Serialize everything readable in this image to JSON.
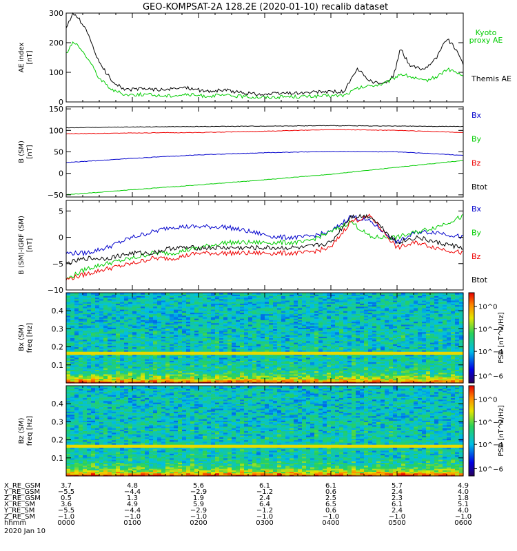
{
  "chart_data": {
    "type": "line",
    "title": "GEO-KOMPSAT-2A 128.2E (2020-01-10) recalib dataset",
    "x_range_hours": [
      0,
      6
    ],
    "panels": [
      {
        "id": "ae",
        "ylabel": [
          "AE index",
          "[nT]"
        ],
        "ylim": [
          0,
          300
        ],
        "yticks": [
          0,
          100,
          200,
          300
        ],
        "legend": [
          {
            "label": "Kyoto proxy AE",
            "color": "#00cc00"
          },
          {
            "label": "Themis AE",
            "color": "#000000"
          }
        ],
        "series": [
          {
            "name": "Themis AE",
            "color": "#000000",
            "x": [
              0,
              0.1,
              0.2,
              0.35,
              0.5,
              0.7,
              0.9,
              1.2,
              1.5,
              1.8,
              2.1,
              2.4,
              2.7,
              3.0,
              3.3,
              3.6,
              3.9,
              4.2,
              4.4,
              4.6,
              4.8,
              4.95,
              5.05,
              5.2,
              5.4,
              5.6,
              5.75,
              5.85,
              6.0
            ],
            "y": [
              250,
              295,
              280,
              220,
              130,
              70,
              40,
              45,
              40,
              50,
              35,
              40,
              30,
              25,
              30,
              30,
              35,
              35,
              110,
              70,
              60,
              90,
              180,
              120,
              110,
              150,
              215,
              190,
              130
            ]
          },
          {
            "name": "Kyoto proxy AE",
            "color": "#00cc00",
            "x": [
              0,
              0.1,
              0.2,
              0.35,
              0.5,
              0.7,
              0.9,
              1.2,
              1.5,
              1.8,
              2.1,
              2.4,
              2.7,
              3.0,
              3.3,
              3.6,
              3.9,
              4.2,
              4.4,
              4.6,
              4.8,
              4.95,
              5.05,
              5.2,
              5.4,
              5.6,
              5.75,
              5.85,
              6.0
            ],
            "y": [
              165,
              200,
              185,
              140,
              80,
              40,
              25,
              25,
              20,
              25,
              20,
              22,
              18,
              15,
              18,
              18,
              20,
              22,
              45,
              55,
              60,
              80,
              95,
              85,
              70,
              85,
              110,
              105,
              85
            ]
          }
        ]
      },
      {
        "id": "bsm",
        "ylabel": [
          "B (SM)",
          "[nT]"
        ],
        "ylim": [
          -55,
          155
        ],
        "yticks": [
          -50,
          0,
          50,
          100,
          150
        ],
        "legend": [
          {
            "label": "Bx",
            "color": "#0000cc"
          },
          {
            "label": "By",
            "color": "#00cc00"
          },
          {
            "label": "Bz",
            "color": "#ee0000"
          },
          {
            "label": "Btot",
            "color": "#000000"
          }
        ],
        "series": [
          {
            "name": "Btot",
            "color": "#000000",
            "x": [
              0,
              1,
              2,
              3,
              4,
              5,
              6
            ],
            "y": [
              106,
              108,
              109,
              110,
              111,
              110,
              109
            ]
          },
          {
            "name": "Bz",
            "color": "#ee0000",
            "x": [
              0,
              1,
              2,
              3,
              4,
              5,
              6
            ],
            "y": [
              92,
              94,
              95,
              98,
              102,
              100,
              95
            ]
          },
          {
            "name": "Bx",
            "color": "#0000cc",
            "x": [
              0,
              1,
              2,
              3,
              4,
              5,
              6
            ],
            "y": [
              25,
              35,
              43,
              48,
              51,
              50,
              42
            ]
          },
          {
            "name": "By",
            "color": "#00cc00",
            "x": [
              0,
              1,
              2,
              3,
              4,
              5,
              6
            ],
            "y": [
              -50,
              -38,
              -27,
              -15,
              -2,
              14,
              30
            ]
          }
        ]
      },
      {
        "id": "dbsm",
        "ylabel": [
          "B (SM)-IGRF (SM)",
          "[nT]"
        ],
        "ylim": [
          -10,
          7
        ],
        "yticks": [
          -10,
          -5,
          0,
          5
        ],
        "legend": [
          {
            "label": "Bx",
            "color": "#0000cc"
          },
          {
            "label": "By",
            "color": "#00cc00"
          },
          {
            "label": "Bz",
            "color": "#ee0000"
          },
          {
            "label": "Btot",
            "color": "#000000"
          }
        ],
        "series": [
          {
            "name": "Bx",
            "color": "#0000cc",
            "x": [
              0,
              0.3,
              0.6,
              1.0,
              1.3,
              1.6,
              2.0,
              2.4,
              2.8,
              3.2,
              3.6,
              4.0,
              4.3,
              4.6,
              5.0,
              5.3,
              5.6,
              6.0
            ],
            "y": [
              -3,
              -3,
              -2,
              0,
              1,
              2,
              2,
              2,
              1,
              0,
              0,
              1,
              4,
              3,
              -1,
              1,
              1,
              0
            ]
          },
          {
            "name": "By",
            "color": "#00cc00",
            "x": [
              0,
              0.3,
              0.6,
              1.0,
              1.3,
              1.6,
              2.0,
              2.4,
              2.8,
              3.2,
              3.6,
              4.0,
              4.3,
              4.6,
              5.0,
              5.3,
              5.6,
              6.0
            ],
            "y": [
              -8,
              -6,
              -5,
              -4,
              -3,
              -3,
              -2,
              -1,
              -1,
              -1,
              -1,
              1,
              3,
              0,
              0,
              1,
              2,
              4
            ]
          },
          {
            "name": "Bz",
            "color": "#ee0000",
            "x": [
              0,
              0.3,
              0.6,
              1.0,
              1.3,
              1.6,
              2.0,
              2.4,
              2.8,
              3.2,
              3.6,
              4.0,
              4.3,
              4.6,
              5.0,
              5.3,
              5.6,
              6.0
            ],
            "y": [
              -8,
              -7,
              -6,
              -5,
              -4,
              -4,
              -3,
              -3,
              -3,
              -3,
              -3,
              -2,
              3,
              4,
              -2,
              -1,
              -2,
              -3
            ]
          },
          {
            "name": "Btot",
            "color": "#000000",
            "x": [
              0,
              0.3,
              0.6,
              1.0,
              1.3,
              1.6,
              2.0,
              2.4,
              2.8,
              3.2,
              3.6,
              4.0,
              4.3,
              4.6,
              5.0,
              5.3,
              5.6,
              6.0
            ],
            "y": [
              -5,
              -4,
              -4,
              -3,
              -3,
              -2,
              -2,
              -2,
              -2,
              -2,
              -2,
              -1,
              4,
              4,
              -1,
              0,
              -1,
              -2
            ]
          }
        ]
      },
      {
        "id": "spec_bx",
        "type": "heatmap",
        "ylabel": [
          "Bx (SM)",
          "freq [Hz]"
        ],
        "ylim": [
          0,
          0.5
        ],
        "yticks": [
          0.1,
          0.2,
          0.3,
          0.4
        ],
        "colorbar_label": "PSD [nT^2/Hz]",
        "colorbar_ticks": [
          "10^0",
          "10^-2",
          "10^-4",
          "10^-6"
        ]
      },
      {
        "id": "spec_bz",
        "type": "heatmap",
        "ylabel": [
          "Bz (SM)",
          "freq [Hz]"
        ],
        "ylim": [
          0,
          0.5
        ],
        "yticks": [
          0.1,
          0.2,
          0.3,
          0.4
        ],
        "colorbar_label": "PSD [nT^2/Hz]",
        "colorbar_ticks": [
          "10^0",
          "10^-2",
          "10^-4",
          "10^-6"
        ]
      }
    ],
    "orbit_table": {
      "row_labels": [
        "X_RE_GSM",
        "Y_RE_GSM",
        "Z_RE_GSM",
        "X_RE_SM",
        "Y_RE_SM",
        "Z_RE_SM",
        "hhmm",
        "2020 Jan 10"
      ],
      "columns": [
        [
          "3.7",
          "-5.5",
          "0.5",
          "3.6",
          "-5.5",
          "-1.0",
          "0000"
        ],
        [
          "4.8",
          "-4.4",
          "1.3",
          "4.9",
          "-4.4",
          "-1.0",
          "0100"
        ],
        [
          "5.6",
          "-2.9",
          "1.9",
          "5.9",
          "-2.9",
          "-1.0",
          "0200"
        ],
        [
          "6.1",
          "-1.2",
          "2.4",
          "6.4",
          "-1.2",
          "-1.0",
          "0300"
        ],
        [
          "6.1",
          "0.6",
          "2.5",
          "6.5",
          "0.6",
          "-1.0",
          "0400"
        ],
        [
          "5.7",
          "2.4",
          "2.3",
          "6.1",
          "2.4",
          "-1.0",
          "0500"
        ],
        [
          "4.9",
          "4.0",
          "1.8",
          "5.1",
          "4.0",
          "-1.0",
          "0600"
        ]
      ]
    }
  }
}
